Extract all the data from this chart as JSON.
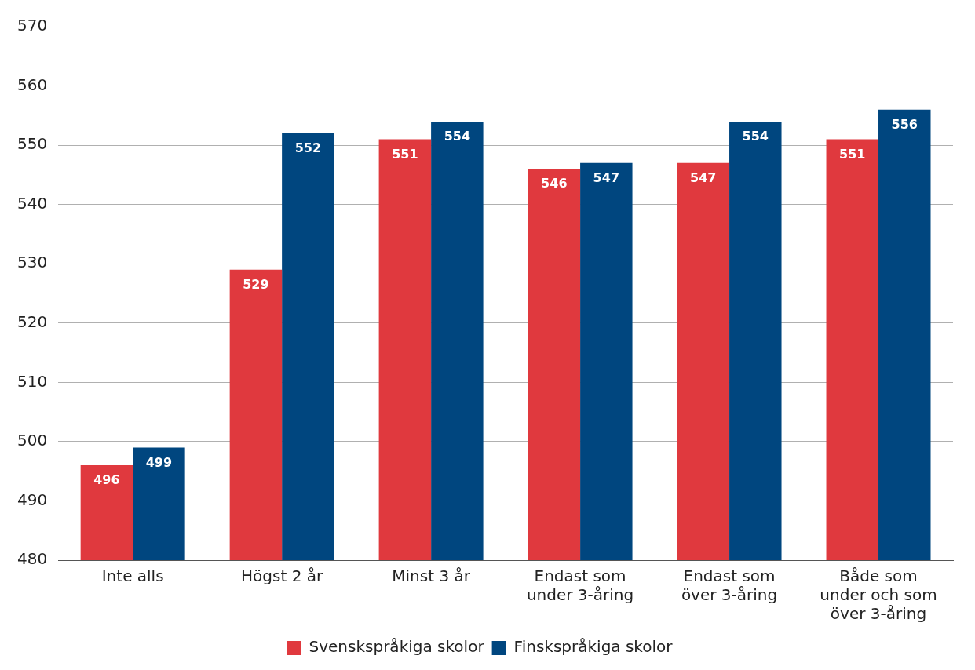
{
  "chart_data": {
    "type": "bar",
    "categories": [
      "Inte alls",
      "Högst 2 år",
      "Minst 3 år",
      "Endast som under 3-åring",
      "Endast som över 3-åring",
      "Både som under och som över 3-åring"
    ],
    "series": [
      {
        "name": "Svenskspråkiga skolor",
        "color": "#e0393e",
        "values": [
          496,
          529,
          551,
          546,
          547,
          551
        ]
      },
      {
        "name": "Finskspråkiga skolor",
        "color": "#00467f",
        "values": [
          499,
          552,
          554,
          547,
          554,
          556
        ]
      }
    ],
    "ylim": [
      480,
      570
    ],
    "yticks": [
      480,
      490,
      500,
      510,
      520,
      530,
      540,
      550,
      560,
      570
    ],
    "grid": "y",
    "legend": "bottom",
    "data_labels": true
  }
}
